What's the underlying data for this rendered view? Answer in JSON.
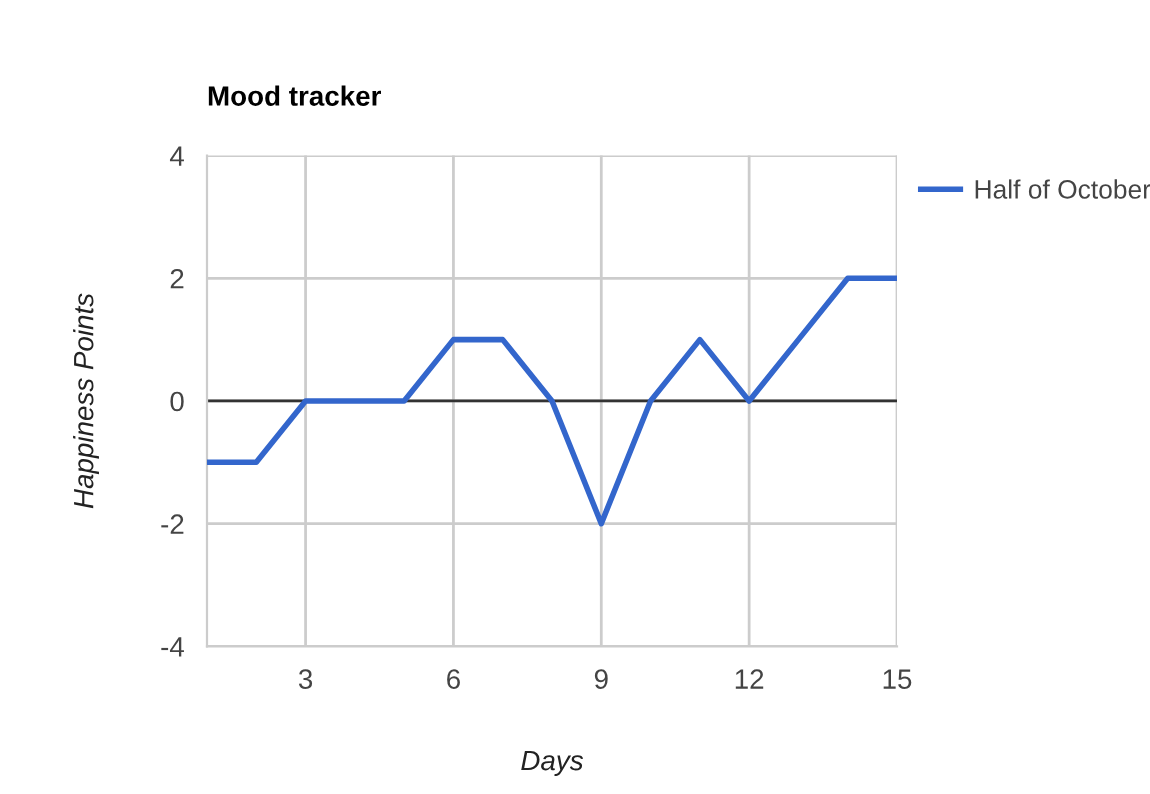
{
  "chart_data": {
    "type": "line",
    "title": "Mood tracker",
    "xlabel": "Days",
    "ylabel": "Happiness Points",
    "x": [
      1,
      2,
      3,
      4,
      5,
      6,
      7,
      8,
      9,
      10,
      11,
      12,
      13,
      14,
      15
    ],
    "series": [
      {
        "name": "Half of October",
        "color": "#3366cc",
        "values": [
          -1,
          -1,
          0,
          0,
          0,
          1,
          1,
          0,
          -2,
          0,
          1,
          0,
          1,
          2,
          2
        ]
      }
    ],
    "xlim": [
      1,
      15
    ],
    "xticks": [
      3,
      6,
      9,
      12,
      15
    ],
    "ylim": [
      -4,
      4
    ],
    "yticks": [
      -4,
      -2,
      0,
      2,
      4
    ],
    "ref_lines": [
      {
        "axis": "y",
        "value": 0,
        "color": "#333333"
      }
    ],
    "grid": true,
    "legend": "right",
    "marker": "none",
    "line_style": "solid"
  }
}
